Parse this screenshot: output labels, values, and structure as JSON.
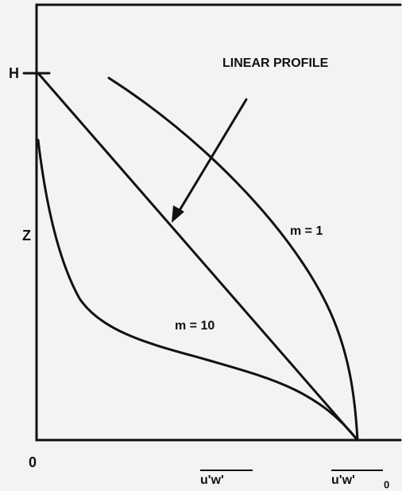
{
  "labels": {
    "h": "H",
    "z": "Z",
    "origin": "0",
    "x_mid": "u'w'",
    "x_end": "u'w'",
    "x_end_subscript": "0",
    "linear": "LINEAR PROFILE",
    "m1": "m = 1",
    "m10": "m = 10"
  }
}
